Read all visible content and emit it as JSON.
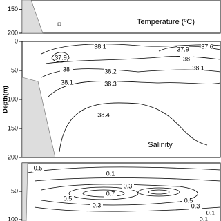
{
  "chart_data": [
    {
      "type": "contour",
      "title": "Temperature (ºC)",
      "ylim": [
        130,
        200
      ],
      "yticks": [
        150,
        200
      ],
      "contour_labels": []
    },
    {
      "type": "contour",
      "title": "Salinity",
      "y_label": "Depth(m)",
      "ylim": [
        0,
        200
      ],
      "yticks": [
        0,
        50,
        100,
        150,
        200
      ],
      "contour_labels": [
        38.1,
        37.9,
        37.9,
        37.6,
        38,
        38.1,
        38,
        38.2,
        38.1,
        38.3,
        38.4
      ]
    },
    {
      "type": "contour",
      "ylim": [
        0,
        100
      ],
      "yticks": [
        50,
        100
      ],
      "contour_labels": [
        0.5,
        0.1,
        0.3,
        0.7,
        0.5,
        0.3,
        0.5,
        0.3,
        0.1,
        0.1
      ]
    }
  ]
}
